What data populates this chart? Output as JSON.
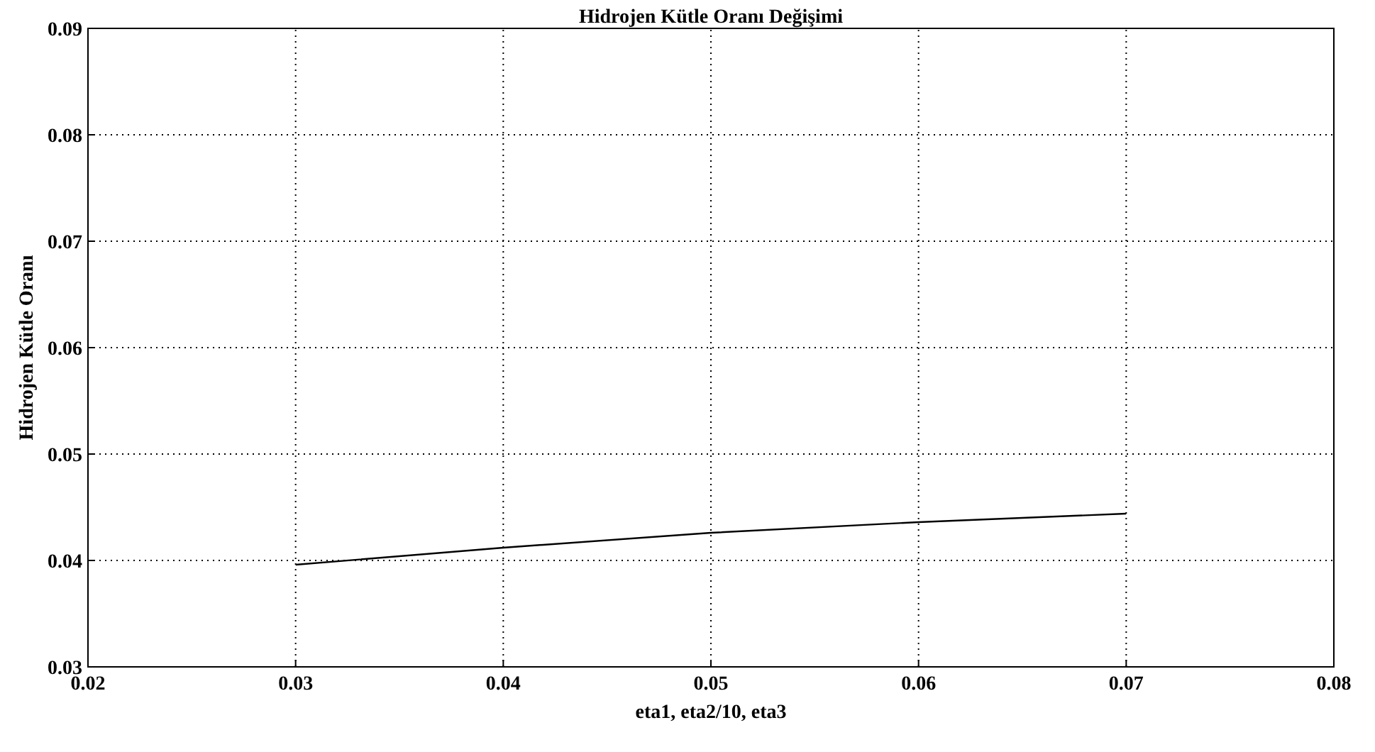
{
  "chart_data": {
    "type": "line",
    "title": "Hidrojen Kütle Oranı Değişimi",
    "xlabel": "eta1, eta2/10, eta3",
    "ylabel": "Hidrojen Kütle Oranı",
    "x": [
      0.03,
      0.04,
      0.05,
      0.06,
      0.07
    ],
    "series": [
      {
        "color": "#000000",
        "values": [
          0.0396,
          0.0412,
          0.0426,
          0.0436,
          0.0444
        ]
      }
    ],
    "xlim": [
      0.02,
      0.08
    ],
    "xticks": [
      0.02,
      0.03,
      0.04,
      0.05,
      0.06,
      0.07,
      0.08
    ],
    "ylim": [
      0.03,
      0.09
    ],
    "yticks": [
      0.03,
      0.04,
      0.05,
      0.06,
      0.07,
      0.08,
      0.09
    ],
    "grid": true,
    "line_style": "solid"
  }
}
